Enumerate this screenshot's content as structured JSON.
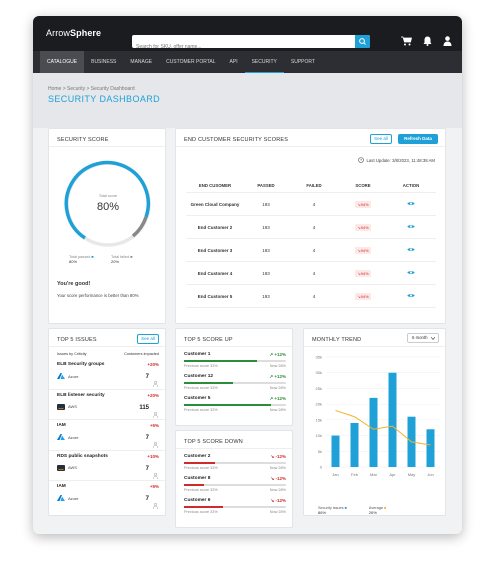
{
  "app": {
    "brand_light": "Arrow",
    "brand_bold": "Sphere",
    "search_placeholder": "Search for SKU, offer name..."
  },
  "icons": {
    "cart": "cart-icon",
    "bell": "bell-icon",
    "user": "user-icon",
    "search": "search-icon"
  },
  "nav": [
    "CATALOGUE",
    "BUSINESS",
    "MANAGE",
    "CUSTOMER PORTAL",
    "API",
    "SECURITY",
    "SUPPORT"
  ],
  "breadcrumb": "Home > Security > Security Dashboard",
  "page_title": "SECURITY  DASHBOARD",
  "score": {
    "title": "SECURITY SCORE",
    "label": "Total score",
    "value": "80%",
    "passed_label": "Total passed",
    "passed": "80%",
    "failed_label": "Total failed",
    "failed": "20%",
    "msg": "You're good!",
    "sub": "Your score performance is better than 80%"
  },
  "customers": {
    "title": "END CUSTOMER SECURITY SCORES",
    "see_all": "See all",
    "refresh": "Refresh Data",
    "last_update": "Last Update: 3/8/2023, 11:48:38 AM",
    "headers": [
      "END CUSOMER",
      "PASSED",
      "FAILED",
      "SCORE",
      "ACTION"
    ],
    "rows": [
      {
        "name": "Green Cloud Company",
        "passed": "193",
        "failed": "4",
        "score": "94%"
      },
      {
        "name": "End Customer 2",
        "passed": "193",
        "failed": "4",
        "score": "94%"
      },
      {
        "name": "End Customer 3",
        "passed": "193",
        "failed": "4",
        "score": "94%"
      },
      {
        "name": "End Customer 4",
        "passed": "193",
        "failed": "4",
        "score": "94%"
      },
      {
        "name": "End Customer 5",
        "passed": "193",
        "failed": "4",
        "score": "94%"
      }
    ]
  },
  "issues": {
    "title": "TOP 5 ISSUES",
    "see_all": "See all",
    "col1": "Issues by Criticity",
    "col2": "Customers impacted",
    "rows": [
      {
        "name": "ELB Security groups",
        "pct": "+20%",
        "vendor": "Azure",
        "count": "7"
      },
      {
        "name": "ELB listener security",
        "pct": "+20%",
        "vendor": "AWS",
        "count": "115"
      },
      {
        "name": "IAM",
        "pct": "+5%",
        "vendor": "Azure",
        "count": "7"
      },
      {
        "name": "RDS public snapshots",
        "pct": "+10%",
        "vendor": "AWS",
        "count": "7"
      },
      {
        "name": "IAM",
        "pct": "+5%",
        "vendor": "Azure",
        "count": "7"
      }
    ]
  },
  "up": {
    "title": "TOP 5 SCORE UP",
    "rows": [
      {
        "name": "Customer 1",
        "delta": "+12%",
        "prev": "Previous score 33%",
        "now": "Now 28%",
        "fill": 0.72
      },
      {
        "name": "Customer 12",
        "delta": "+12%",
        "prev": "Previous score 33%",
        "now": "Now 28%",
        "fill": 0.48
      },
      {
        "name": "Customer 5",
        "delta": "+12%",
        "prev": "Previous score 33%",
        "now": "Now 28%",
        "fill": 0.85
      }
    ]
  },
  "down": {
    "title": "TOP 5 SCORE DOWN",
    "rows": [
      {
        "name": "Customer 2",
        "delta": "-12%",
        "prev": "Previous score 33%",
        "now": "Now 28%",
        "fill": 0.3
      },
      {
        "name": "Customer 8",
        "delta": "-12%",
        "prev": "Previous score 33%",
        "now": "Now 28%",
        "fill": 0.2
      },
      {
        "name": "Customer 6",
        "delta": "-12%",
        "prev": "Previous score 33%",
        "now": "Now 28%",
        "fill": 0.38
      }
    ]
  },
  "trend": {
    "title": "MONTHLY TREND",
    "select": "6 month",
    "legend_issues_label": "Security issues",
    "legend_issues": "86%",
    "legend_avg_label": "Average",
    "legend_avg": "26%"
  },
  "colors": {
    "accent": "#1fa1d8",
    "avg_line": "#f5b324",
    "red": "#d12a2a",
    "green": "#2a8d3a"
  },
  "chart_data": {
    "type": "bar",
    "categories": [
      "Jan",
      "Feb",
      "Mar",
      "Apr",
      "May",
      "Jun"
    ],
    "series": [
      {
        "name": "Security issues",
        "values": [
          10,
          14,
          22,
          30,
          16,
          12
        ]
      },
      {
        "name": "Average",
        "type": "line",
        "values": [
          18,
          16,
          12,
          13,
          8,
          7
        ]
      }
    ],
    "yticks": [
      "0",
      "5k",
      "10k",
      "15k",
      "20k",
      "25k",
      "30k",
      "35k"
    ],
    "ylim": [
      0,
      35
    ]
  }
}
